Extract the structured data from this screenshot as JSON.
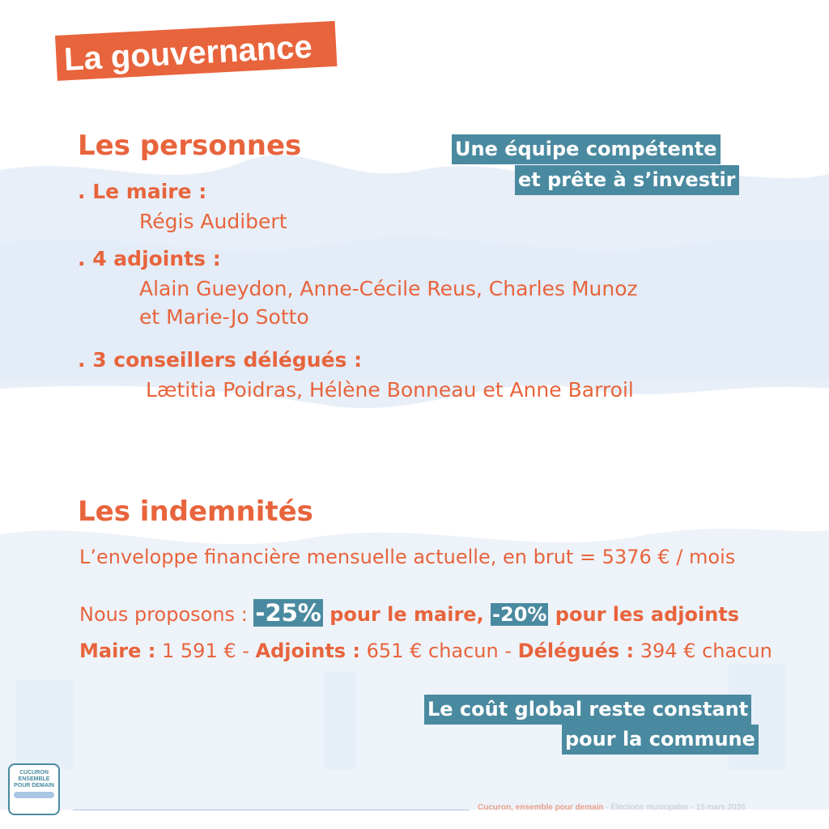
{
  "title": "La gouvernance",
  "personnes": {
    "heading": "Les personnes",
    "tag_line1": "Une équipe compétente",
    "tag_line2": "et prête à s’investir",
    "maire_label": ". Le maire :",
    "maire_name": "Régis Audibert",
    "adjoints_label": ". 4 adjoints :",
    "adjoints_line1": "Alain Gueydon, Anne-Cécile Reus, Charles Munoz",
    "adjoints_line2": "et Marie-Jo Sotto",
    "conseillers_label": ". 3 conseillers délégués :",
    "conseillers_names": "Lætitia Poidras, Hélène Bonneau et Anne Barroil"
  },
  "indemnites": {
    "heading": "Les indemnités",
    "enveloppe": "L’enveloppe financière mensuelle actuelle, en brut = 5376 € / mois",
    "propose_prefix": "Nous proposons : ",
    "propose_maire_pct": "-25%",
    "propose_maire_text": " pour le maire, ",
    "propose_adjoints_pct": "-20%",
    "propose_adjoints_text": " pour les adjoints",
    "maire_label": "Maire :",
    "maire_value": " 1 591 € - ",
    "adjoints_label": "Adjoints :",
    "adjoints_value": " 651 € chacun - ",
    "delegues_label": "Délégués :",
    "delegues_value": " 394 € chacun",
    "tag_line1": "Le coût global reste constant",
    "tag_line2": "pour la commune"
  },
  "logo": {
    "line1": "CUCURON",
    "line2": "ENSEMBLE",
    "line3": "POUR DEMAIN"
  },
  "footer": {
    "brand": "Cucuron, ensemble pour demain",
    "rest": " - Élections municipales - 15 mars 2026"
  },
  "colors": {
    "accent": "#e8643c",
    "teal": "#4a8aa0",
    "background_shape": "#e6eef8"
  }
}
